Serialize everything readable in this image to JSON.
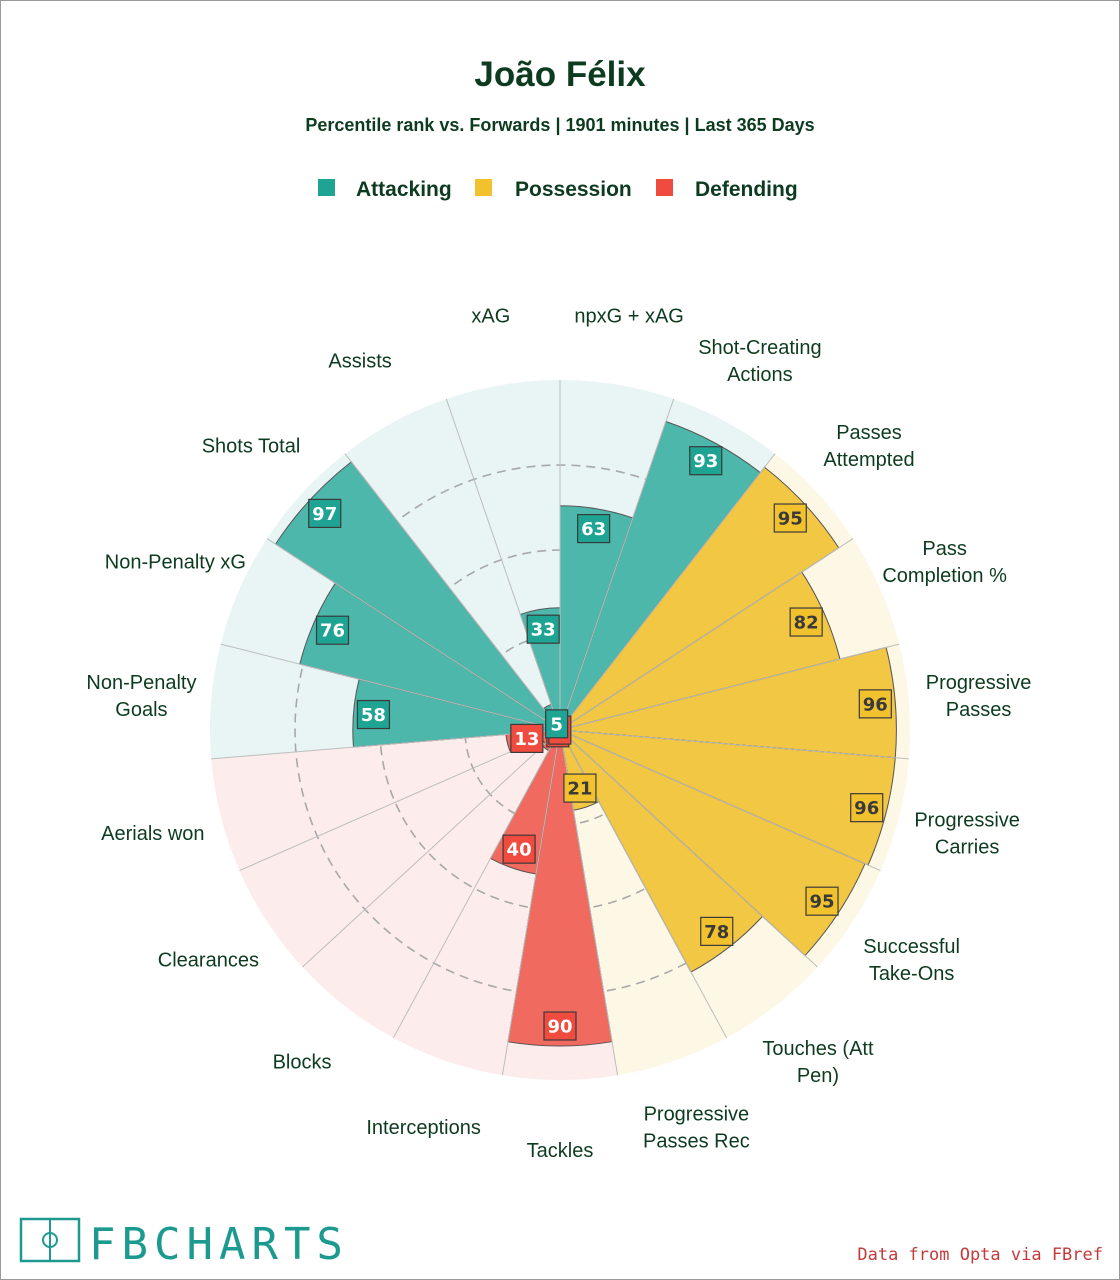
{
  "chart_data": {
    "type": "radial-bar",
    "title": "João Félix",
    "subtitle": "Percentile rank vs. Forwards | 1901 minutes | Last 365 Days",
    "legend": [
      {
        "name": "Attacking",
        "color": "#1fa393"
      },
      {
        "name": "Possession",
        "color": "#f2c12e"
      },
      {
        "name": "Defending",
        "color": "#ef4c3f"
      }
    ],
    "range": [
      0,
      100
    ],
    "grid": true,
    "categories": [
      {
        "label": [
          "npxG + xAG"
        ],
        "value": 63,
        "group": "Attacking"
      },
      {
        "label": [
          "Shot-Creating",
          "Actions"
        ],
        "value": 93,
        "group": "Attacking"
      },
      {
        "label": [
          "Passes",
          "Attempted"
        ],
        "value": 95,
        "group": "Possession"
      },
      {
        "label": [
          "Pass",
          "Completion %"
        ],
        "value": 82,
        "group": "Possession"
      },
      {
        "label": [
          "Progressive",
          "Passes"
        ],
        "value": 96,
        "group": "Possession"
      },
      {
        "label": [
          "Progressive",
          "Carries"
        ],
        "value": 96,
        "group": "Possession"
      },
      {
        "label": [
          "Successful",
          "Take-Ons"
        ],
        "value": 95,
        "group": "Possession"
      },
      {
        "label": [
          "Touches (Att",
          "Pen)"
        ],
        "value": 78,
        "group": "Possession"
      },
      {
        "label": [
          "Progressive",
          "Passes Rec"
        ],
        "value": 21,
        "group": "Possession"
      },
      {
        "label": [
          "Tackles"
        ],
        "value": 90,
        "group": "Defending"
      },
      {
        "label": [
          "Interceptions"
        ],
        "value": 40,
        "group": "Defending"
      },
      {
        "label": [
          "Blocks"
        ],
        "value": 4,
        "group": "Defending"
      },
      {
        "label": [
          "Clearances"
        ],
        "value": 3,
        "group": "Defending"
      },
      {
        "label": [
          "Aerials won"
        ],
        "value": 13,
        "group": "Defending"
      },
      {
        "label": [
          "Non-Penalty",
          "Goals"
        ],
        "value": 58,
        "group": "Attacking"
      },
      {
        "label": [
          "Non-Penalty xG"
        ],
        "value": 76,
        "group": "Attacking"
      },
      {
        "label": [
          "Shots Total"
        ],
        "value": 97,
        "group": "Attacking"
      },
      {
        "label": [
          "Assists"
        ],
        "value": 5,
        "group": "Attacking"
      },
      {
        "label": [
          "xAG"
        ],
        "value": 33,
        "group": "Attacking"
      }
    ]
  },
  "logo": {
    "text": "FBCHARTS"
  },
  "source": "Data from Opta via FBref",
  "colors": {
    "title": "#0d3b1f",
    "Attacking": {
      "bar": "#4db7ab",
      "bg": "#e8f5f4",
      "box": "#1fa393"
    },
    "Possession": {
      "bar": "#f2c744",
      "bg": "#fdf7e6",
      "box": "#f2c12e"
    },
    "Defending": {
      "bar": "#f16a60",
      "bg": "#fdecec",
      "box": "#ef4c3f"
    }
  }
}
